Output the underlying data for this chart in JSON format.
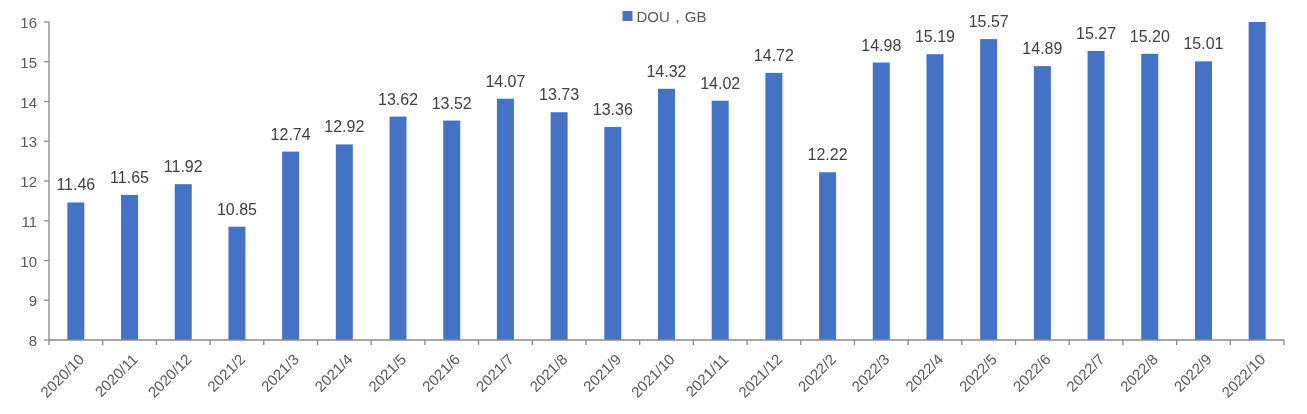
{
  "chart_data": {
    "type": "bar",
    "legend": "top",
    "categories": [
      "2020/10",
      "2020/11",
      "2020/12",
      "2021/2",
      "2021/3",
      "2021/4",
      "2021/5",
      "2021/6",
      "2021/7",
      "2021/8",
      "2021/9",
      "2021/10",
      "2021/11",
      "2021/12",
      "2022/2",
      "2022/3",
      "2022/4",
      "2022/5",
      "2022/6",
      "2022/7",
      "2022/8",
      "2022/9",
      "2022/10"
    ],
    "series": [
      {
        "name": "DOU，GB",
        "color": "#4472c4",
        "values": [
          11.46,
          11.65,
          11.92,
          10.85,
          12.74,
          12.92,
          13.62,
          13.52,
          14.07,
          13.73,
          13.36,
          14.32,
          14.02,
          14.72,
          12.22,
          14.98,
          15.19,
          15.57,
          14.89,
          15.27,
          15.2,
          15.01,
          16
        ],
        "value_labels": [
          "11.46",
          "11.65",
          "11.92",
          "10.85",
          "12.74",
          "12.92",
          "13.62",
          "13.52",
          "14.07",
          "13.73",
          "13.36",
          "14.32",
          "14.02",
          "14.72",
          "12.22",
          "14.98",
          "15.19",
          "15.57",
          "14.89",
          "15.27",
          "15.20",
          "15.01",
          null
        ]
      }
    ],
    "ylim": [
      8,
      16
    ],
    "yticks": [
      8,
      9,
      10,
      11,
      12,
      13,
      14,
      15,
      16
    ]
  }
}
